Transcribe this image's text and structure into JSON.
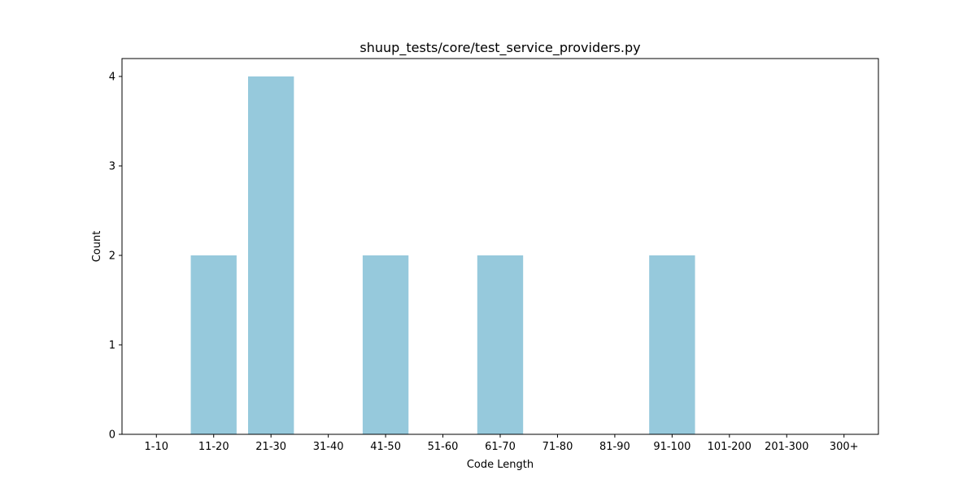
{
  "chart_data": {
    "type": "bar",
    "title": "shuup_tests/core/test_service_providers.py",
    "xlabel": "Code Length",
    "ylabel": "Count",
    "categories": [
      "1-10",
      "11-20",
      "21-30",
      "31-40",
      "41-50",
      "51-60",
      "61-70",
      "71-80",
      "81-90",
      "91-100",
      "101-200",
      "201-300",
      "300+"
    ],
    "values": [
      0,
      2,
      4,
      0,
      2,
      0,
      2,
      0,
      0,
      2,
      0,
      0,
      0
    ],
    "ylim": [
      0,
      4.2
    ],
    "yticks": [
      "0",
      "1",
      "2",
      "3",
      "4"
    ],
    "bar_color": "#96c9dc",
    "grid": false,
    "legend": "none"
  }
}
